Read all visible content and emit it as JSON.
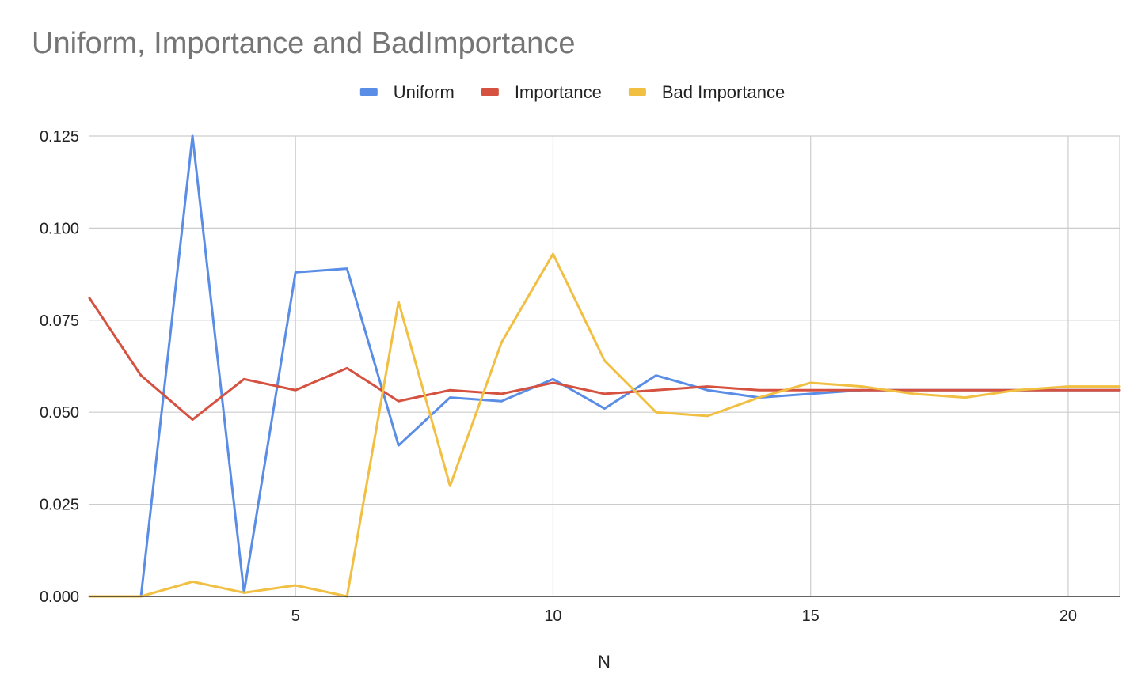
{
  "chart_data": {
    "type": "line",
    "title": "Uniform, Importance and BadImportance",
    "xlabel": "N",
    "ylabel": "",
    "xlim": [
      1,
      21
    ],
    "ylim": [
      0,
      0.125
    ],
    "x_ticks": [
      {
        "value": 5,
        "label": "5"
      },
      {
        "value": 10,
        "label": "10"
      },
      {
        "value": 15,
        "label": "15"
      },
      {
        "value": 20,
        "label": "20"
      }
    ],
    "y_ticks": [
      {
        "value": 0,
        "label": "0.000"
      },
      {
        "value": 0.025,
        "label": "0.025"
      },
      {
        "value": 0.05,
        "label": "0.050"
      },
      {
        "value": 0.075,
        "label": "0.075"
      },
      {
        "value": 0.1,
        "label": "0.100"
      },
      {
        "value": 0.125,
        "label": "0.125"
      }
    ],
    "grid": true,
    "legend_position": "top-center",
    "x": [
      1,
      2,
      3,
      4,
      5,
      6,
      7,
      8,
      9,
      10,
      11,
      12,
      13,
      14,
      15,
      16,
      17,
      18,
      19,
      20,
      21
    ],
    "series": [
      {
        "name": "Uniform",
        "color": "#5a8de6",
        "values": [
          0,
          0,
          0.125,
          0.001,
          0.088,
          0.089,
          0.041,
          0.054,
          0.053,
          0.059,
          0.051,
          0.06,
          0.056,
          0.054,
          0.055,
          0.056,
          0.056,
          0.056,
          0.056,
          0.056,
          0.056
        ]
      },
      {
        "name": "Importance",
        "color": "#d55140",
        "values": [
          0.081,
          0.06,
          0.048,
          0.059,
          0.056,
          0.062,
          0.053,
          0.056,
          0.055,
          0.058,
          0.055,
          0.056,
          0.057,
          0.056,
          0.056,
          0.056,
          0.056,
          0.056,
          0.056,
          0.056,
          0.056
        ]
      },
      {
        "name": "Bad Importance",
        "color": "#f1bf42",
        "values": [
          0,
          0,
          0.004,
          0.001,
          0.003,
          0,
          0.08,
          0.03,
          0.069,
          0.093,
          0.064,
          0.05,
          0.049,
          0.054,
          0.058,
          0.057,
          0.055,
          0.054,
          0.056,
          0.057,
          0.057
        ]
      }
    ]
  }
}
